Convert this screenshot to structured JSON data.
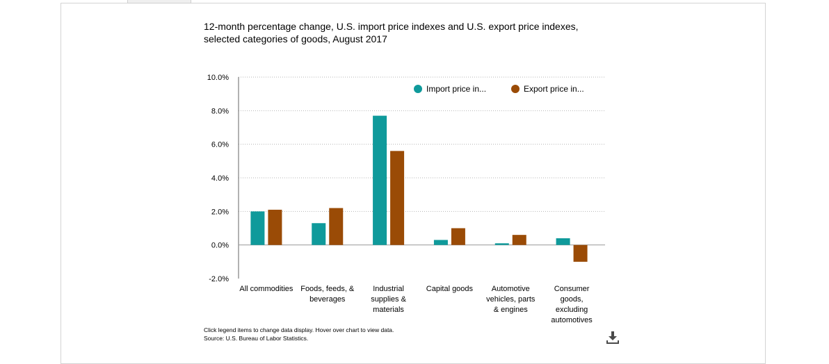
{
  "chart_data": {
    "type": "bar",
    "title_lines": [
      "12-month percentage change, U.S. import price indexes and U.S. export price indexes,",
      "selected categories of goods, August 2017"
    ],
    "categories": [
      [
        "All commodities"
      ],
      [
        "Foods, feeds, &",
        "beverages"
      ],
      [
        "Industrial",
        "supplies &",
        "materials"
      ],
      [
        "Capital goods"
      ],
      [
        "Automotive",
        "vehicles, parts",
        "& engines"
      ],
      [
        "Consumer",
        "goods,",
        "excluding",
        "automotives"
      ]
    ],
    "series": [
      {
        "name": "Import price in...",
        "color": "#0f9a9b",
        "values": [
          2.0,
          1.3,
          7.7,
          0.3,
          0.1,
          0.4
        ]
      },
      {
        "name": "Export price in...",
        "color": "#9a4b06",
        "values": [
          2.1,
          2.2,
          5.6,
          1.0,
          0.6,
          -1.0
        ]
      }
    ],
    "y_ticks": [
      "10.0%",
      "8.0%",
      "6.0%",
      "4.0%",
      "2.0%",
      "0.0%",
      "-2.0%"
    ],
    "y_tick_values": [
      10,
      8,
      6,
      4,
      2,
      0,
      -2
    ],
    "ylim": [
      -2,
      10
    ],
    "grid": true,
    "legend_position": "top-right",
    "xlabel": "",
    "ylabel": ""
  },
  "footnote": {
    "line1": "Click legend items to change data display. Hover over chart to view data.",
    "line2": "Source: U.S. Bureau of Labor Statistics."
  },
  "icons": {
    "download": "download-icon"
  }
}
